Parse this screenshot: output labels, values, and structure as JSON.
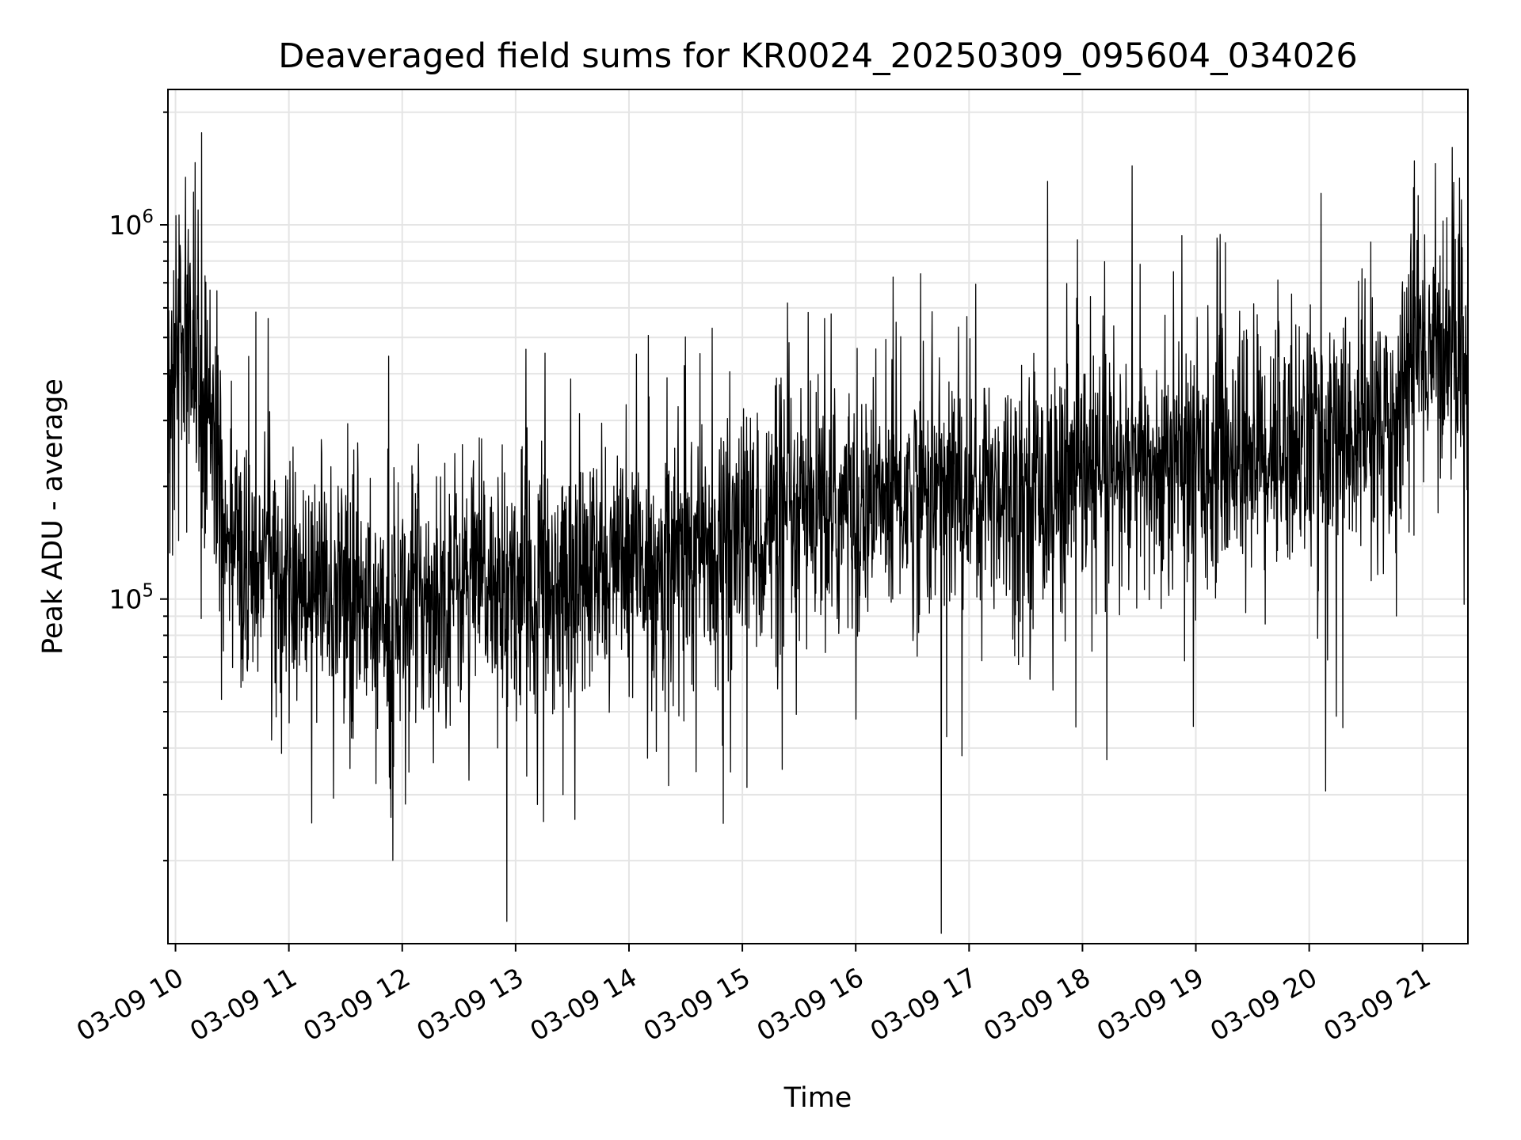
{
  "chart_data": {
    "type": "line",
    "title": "Deaveraged field sums for KR0024_20250309_095604_034026",
    "xlabel": "Time",
    "ylabel": "Peak ADU - average",
    "yscale": "log",
    "grid": true,
    "legend": "none",
    "line_color": "#000000",
    "grid_color": "#e5e5e5",
    "x_start": "2025-03-09 09:56",
    "x_end": "2025-03-09 21:24",
    "ylim": [
      12000,
      2300000
    ],
    "x_ticks": [
      "03-09 10",
      "03-09 11",
      "03-09 12",
      "03-09 13",
      "03-09 14",
      "03-09 15",
      "03-09 16",
      "03-09 17",
      "03-09 18",
      "03-09 19",
      "03-09 20",
      "03-09 21"
    ],
    "y_ticks": [
      {
        "base": "10",
        "exp": "5",
        "value": 100000
      },
      {
        "base": "10",
        "exp": "6",
        "value": 1000000
      }
    ],
    "series": [
      {
        "x": [
          "2025-03-09 09:56",
          "2025-03-09 10:00",
          "2025-03-09 10:05",
          "2025-03-09 10:10",
          "2025-03-09 10:15",
          "2025-03-09 10:20",
          "2025-03-09 10:25",
          "2025-03-09 10:30",
          "2025-03-09 10:40",
          "2025-03-09 10:50",
          "2025-03-09 11:00",
          "2025-03-09 11:15",
          "2025-03-09 11:30",
          "2025-03-09 11:45",
          "2025-03-09 12:00",
          "2025-03-09 12:15",
          "2025-03-09 12:30",
          "2025-03-09 12:45",
          "2025-03-09 13:00",
          "2025-03-09 13:15",
          "2025-03-09 13:30",
          "2025-03-09 13:45",
          "2025-03-09 14:00",
          "2025-03-09 14:15",
          "2025-03-09 14:30",
          "2025-03-09 14:45",
          "2025-03-09 15:00",
          "2025-03-09 15:15",
          "2025-03-09 15:30",
          "2025-03-09 15:45",
          "2025-03-09 16:00",
          "2025-03-09 16:15",
          "2025-03-09 16:30",
          "2025-03-09 16:45",
          "2025-03-09 17:00",
          "2025-03-09 17:15",
          "2025-03-09 17:30",
          "2025-03-09 17:45",
          "2025-03-09 18:00",
          "2025-03-09 18:15",
          "2025-03-09 18:30",
          "2025-03-09 18:45",
          "2025-03-09 19:00",
          "2025-03-09 19:15",
          "2025-03-09 19:30",
          "2025-03-09 19:45",
          "2025-03-09 20:00",
          "2025-03-09 20:15",
          "2025-03-09 20:30",
          "2025-03-09 20:45",
          "2025-03-09 20:55",
          "2025-03-09 21:00",
          "2025-03-09 21:10",
          "2025-03-09 21:24"
        ],
        "y": [
          380000,
          450000,
          500000,
          420000,
          350000,
          260000,
          180000,
          140000,
          125000,
          120000,
          115000,
          110000,
          100000,
          98000,
          100000,
          105000,
          112000,
          110000,
          108000,
          110000,
          112000,
          115000,
          120000,
          128000,
          135000,
          140000,
          150000,
          155000,
          160000,
          165000,
          175000,
          185000,
          190000,
          195000,
          195000,
          200000,
          198000,
          200000,
          205000,
          210000,
          215000,
          225000,
          235000,
          245000,
          255000,
          260000,
          265000,
          270000,
          280000,
          300000,
          500000,
          480000,
          460000,
          470000
        ]
      }
    ]
  }
}
